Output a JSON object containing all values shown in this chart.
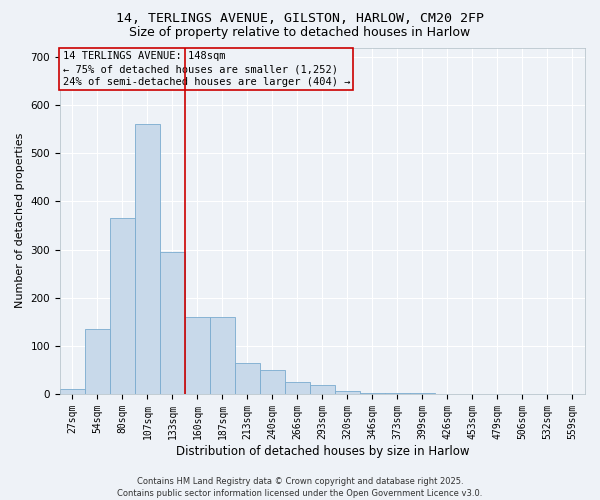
{
  "title_line1": "14, TERLINGS AVENUE, GILSTON, HARLOW, CM20 2FP",
  "title_line2": "Size of property relative to detached houses in Harlow",
  "xlabel": "Distribution of detached houses by size in Harlow",
  "ylabel": "Number of detached properties",
  "bar_color": "#c8d9ea",
  "bar_edge_color": "#7aabcf",
  "vline_color": "#cc0000",
  "categories": [
    "27sqm",
    "54sqm",
    "80sqm",
    "107sqm",
    "133sqm",
    "160sqm",
    "187sqm",
    "213sqm",
    "240sqm",
    "266sqm",
    "293sqm",
    "320sqm",
    "346sqm",
    "373sqm",
    "399sqm",
    "426sqm",
    "453sqm",
    "479sqm",
    "506sqm",
    "532sqm",
    "559sqm"
  ],
  "values": [
    10,
    135,
    365,
    560,
    295,
    160,
    160,
    65,
    50,
    25,
    18,
    7,
    3,
    1,
    1,
    0,
    0,
    0,
    0,
    0,
    0
  ],
  "ylim": [
    0,
    720
  ],
  "yticks": [
    0,
    100,
    200,
    300,
    400,
    500,
    600,
    700
  ],
  "annotation_text": "14 TERLINGS AVENUE: 148sqm\n← 75% of detached houses are smaller (1,252)\n24% of semi-detached houses are larger (404) →",
  "footer_line1": "Contains HM Land Registry data © Crown copyright and database right 2025.",
  "footer_line2": "Contains public sector information licensed under the Open Government Licence v3.0.",
  "background_color": "#eef2f7",
  "grid_color": "#ffffff",
  "title_fontsize": 9.5,
  "subtitle_fontsize": 9,
  "tick_fontsize": 7,
  "ylabel_fontsize": 8,
  "xlabel_fontsize": 8.5,
  "annotation_fontsize": 7.5,
  "footer_fontsize": 6
}
